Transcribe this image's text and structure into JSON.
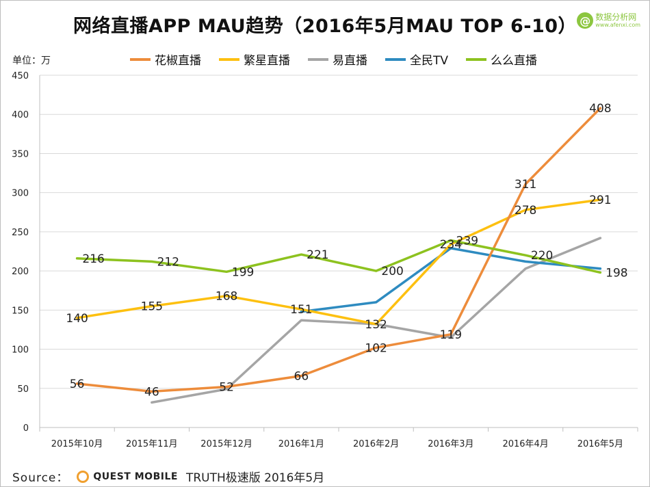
{
  "title": "网络直播APP MAU趋势（2016年5月MAU TOP 6-10）",
  "logo": {
    "mark": "@",
    "name": "数据分析网",
    "url": "www.afenxi.com"
  },
  "unit_label": "单位：万",
  "source": {
    "label": "Source：",
    "brand": "QUEST MOBILE",
    "note": "TRUTH极速版 2016年5月"
  },
  "chart_data": {
    "type": "line",
    "title": "网络直播APP MAU趋势（2016年5月MAU TOP 6-10）",
    "xlabel": "",
    "ylabel": "单位：万",
    "ylim": [
      0,
      450
    ],
    "yticks": [
      0,
      50,
      100,
      150,
      200,
      250,
      300,
      350,
      400,
      450
    ],
    "grid": "horizontal",
    "legend_position": "top",
    "categories": [
      "2015年10月",
      "2015年11月",
      "2015年12月",
      "2016年1月",
      "2016年2月",
      "2016年3月",
      "2016年4月",
      "2016年5月"
    ],
    "series": [
      {
        "name": "花椒直播",
        "color": "#ed8c3b",
        "values": [
          56,
          46,
          52,
          66,
          102,
          119,
          311,
          408
        ],
        "labels": [
          "56",
          "46",
          "52",
          "66",
          "102",
          "119",
          "311",
          "408"
        ]
      },
      {
        "name": "繁星直播",
        "color": "#fdc010",
        "values": [
          140,
          155,
          168,
          151,
          132,
          234,
          278,
          291
        ],
        "labels": [
          "140",
          "155",
          "168",
          "151",
          "132",
          "234",
          "278",
          "291"
        ]
      },
      {
        "name": "易直播",
        "color": "#a5a5a5",
        "values": [
          null,
          32,
          49,
          137,
          132,
          115,
          203,
          242
        ],
        "labels": [
          "",
          "",
          "",
          "",
          "",
          "",
          "",
          ""
        ]
      },
      {
        "name": "全民TV",
        "color": "#2e8bc0",
        "values": [
          null,
          null,
          null,
          148,
          160,
          229,
          212,
          203
        ],
        "labels": [
          "",
          "",
          "",
          "",
          "",
          "",
          "",
          ""
        ]
      },
      {
        "name": "么么直播",
        "color": "#8dc21f",
        "values": [
          216,
          212,
          199,
          221,
          200,
          239,
          220,
          198
        ],
        "labels": [
          "216",
          "212",
          "199",
          "221",
          "200",
          "239",
          "220",
          "198"
        ]
      }
    ]
  }
}
